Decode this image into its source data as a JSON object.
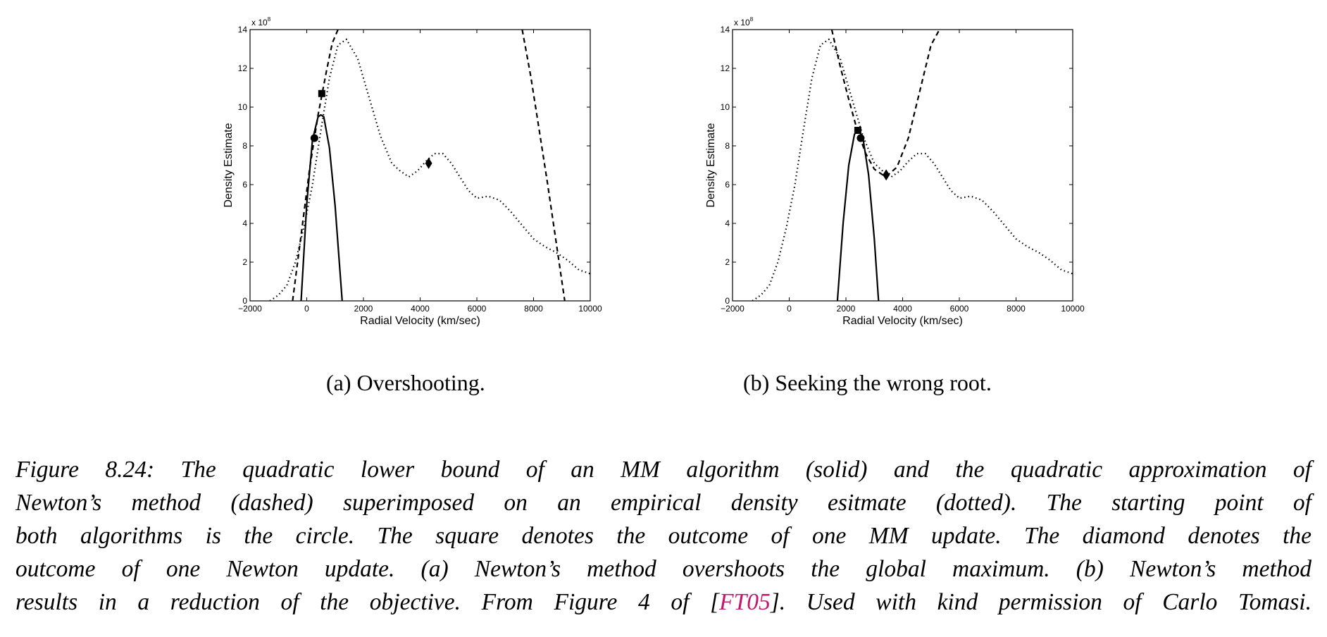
{
  "figure": {
    "subcaption_a": "(a) Overshooting.",
    "subcaption_b": "(b) Seeking the wrong root.",
    "caption_lines": [
      "Figure 8.24: The quadratic lower bound of an MM algorithm (solid) and the quadratic approximation of",
      "Newton’s method (dashed) superimposed on an empirical density esitmate (dotted). The starting point of",
      "both algorithms is the circle. The square denotes the outcome of one MM update. The diamond denotes the",
      "outcome of one Newton update. (a) Newton’s method overshoots the global maximum. (b) Newton’s method"
    ],
    "caption_last_pre": "results in a reduction of the objective. From Figure 4 of [",
    "caption_cite": "FT05",
    "caption_last_post": "]. Used with kind permission of Carlo Tomasi.",
    "cite_color": "#c0186b"
  },
  "chart_data": [
    {
      "type": "line",
      "panel": "a",
      "xlabel": "Radial Velocity (km/sec)",
      "ylabel": "Density Estimate",
      "y_exponent_label": "x 10",
      "y_exponent_power": "8",
      "xlim": [
        -2000,
        10000
      ],
      "ylim": [
        0,
        14
      ],
      "xticks": [
        -2000,
        0,
        2000,
        4000,
        6000,
        8000,
        10000
      ],
      "yticks": [
        0,
        2,
        4,
        6,
        8,
        10,
        12,
        14
      ],
      "grid": false,
      "series": [
        {
          "style": "dotted",
          "x": [
            -1300,
            -1000,
            -700,
            -400,
            -100,
            200,
            500,
            800,
            1100,
            1400,
            1800,
            2200,
            2600,
            3000,
            3300,
            3600,
            3900,
            4200,
            4500,
            4800,
            5100,
            5400,
            5700,
            6000,
            6400,
            6800,
            7200,
            7600,
            8000,
            8400,
            8800,
            9200,
            9600,
            10000
          ],
          "y": [
            0.0,
            0.3,
            0.8,
            2.0,
            3.8,
            6.0,
            8.8,
            11.5,
            13.2,
            13.5,
            12.5,
            10.5,
            8.5,
            7.1,
            6.7,
            6.4,
            6.7,
            7.2,
            7.6,
            7.6,
            7.1,
            6.4,
            5.7,
            5.3,
            5.4,
            5.2,
            4.6,
            3.9,
            3.2,
            2.8,
            2.5,
            2.1,
            1.6,
            1.4
          ]
        },
        {
          "style": "dashed",
          "x": [
            -500,
            -200,
            100,
            400,
            700,
            900,
            1100,
            1200
          ],
          "y": [
            0.0,
            3.4,
            6.8,
            9.6,
            11.9,
            13.3,
            14.0,
            14.0
          ]
        },
        {
          "style": "dashed",
          "x": [
            7600,
            7900,
            8200,
            8500,
            8800,
            9100
          ],
          "y": [
            14.0,
            11.6,
            8.8,
            6.0,
            3.0,
            0.0
          ]
        },
        {
          "style": "solid",
          "x": [
            -200,
            0,
            200,
            400,
            500,
            600,
            800,
            1000,
            1250
          ],
          "y": [
            0.0,
            5.0,
            8.3,
            9.5,
            9.6,
            9.5,
            7.9,
            4.9,
            0.0
          ]
        }
      ],
      "markers": [
        {
          "shape": "circle",
          "x": 270,
          "y": 8.4
        },
        {
          "shape": "square",
          "x": 530,
          "y": 10.7
        },
        {
          "shape": "diamond",
          "x": 4300,
          "y": 7.1
        }
      ]
    },
    {
      "type": "line",
      "panel": "b",
      "xlabel": "Radial Velocity (km/sec)",
      "ylabel": "Density Estimate",
      "y_exponent_label": "x 10",
      "y_exponent_power": "8",
      "xlim": [
        -2000,
        10000
      ],
      "ylim": [
        0,
        14
      ],
      "xticks": [
        -2000,
        0,
        2000,
        4000,
        6000,
        8000,
        10000
      ],
      "yticks": [
        0,
        2,
        4,
        6,
        8,
        10,
        12,
        14
      ],
      "grid": false,
      "series": [
        {
          "style": "dotted",
          "x": [
            -1300,
            -1000,
            -700,
            -400,
            -100,
            200,
            500,
            800,
            1100,
            1400,
            1800,
            2200,
            2600,
            3000,
            3300,
            3600,
            3900,
            4200,
            4500,
            4800,
            5100,
            5400,
            5700,
            6000,
            6400,
            6800,
            7200,
            7600,
            8000,
            8400,
            8800,
            9200,
            9600,
            10000
          ],
          "y": [
            0.0,
            0.3,
            0.8,
            2.0,
            3.8,
            6.0,
            8.8,
            11.5,
            13.2,
            13.5,
            12.5,
            10.5,
            8.5,
            7.1,
            6.7,
            6.4,
            6.7,
            7.2,
            7.6,
            7.6,
            7.1,
            6.4,
            5.7,
            5.3,
            5.4,
            5.2,
            4.6,
            3.9,
            3.2,
            2.8,
            2.5,
            2.1,
            1.6,
            1.4
          ]
        },
        {
          "style": "dashed",
          "x": [
            1500,
            1800,
            2100,
            2400,
            2700,
            3000,
            3400,
            3800,
            4200,
            4600,
            5000,
            5300
          ],
          "y": [
            14.0,
            12.1,
            10.4,
            8.8,
            7.6,
            6.8,
            6.4,
            6.9,
            8.4,
            10.8,
            13.2,
            14.0
          ]
        },
        {
          "style": "solid",
          "x": [
            1700,
            1900,
            2100,
            2300,
            2450,
            2600,
            2800,
            3000,
            3150
          ],
          "y": [
            0.0,
            4.0,
            7.0,
            8.6,
            8.8,
            8.4,
            6.5,
            3.2,
            0.0
          ]
        }
      ],
      "markers": [
        {
          "shape": "circle",
          "x": 2520,
          "y": 8.4
        },
        {
          "shape": "square",
          "x": 2420,
          "y": 8.8
        },
        {
          "shape": "diamond",
          "x": 3420,
          "y": 6.5
        }
      ]
    }
  ]
}
